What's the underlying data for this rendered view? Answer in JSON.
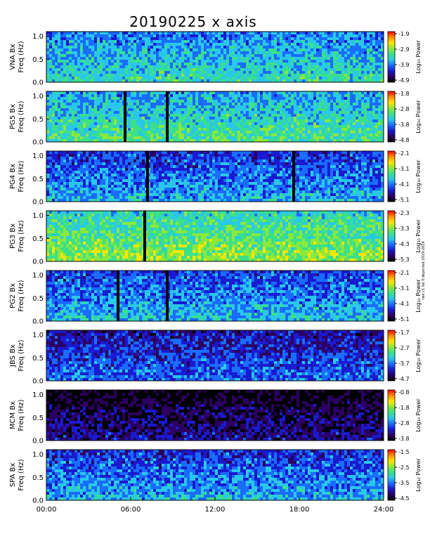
{
  "chart_data": {
    "type": "heatmap",
    "title": "20190225 x axis",
    "colorbar_label": "Log₁₀ Power",
    "x_axis": {
      "tick_labels": [
        "00:00",
        "06:00",
        "12:00",
        "18:00",
        "24:00"
      ],
      "tick_hours": [
        0,
        6,
        12,
        18,
        24
      ],
      "range_hours": [
        0,
        24
      ]
    },
    "y_axis": {
      "tick_labels": [
        "0.0",
        "0.5",
        "1.0"
      ],
      "tick_values": [
        0.0,
        0.5,
        1.0
      ],
      "range": [
        0,
        1.1
      ]
    },
    "side_note": "rwk c1 lse 0 deported 2019-2019",
    "colorscale": [
      "#000000",
      "#2b0060",
      "#1a1ad0",
      "#1a6cff",
      "#2ac8e8",
      "#3ae08a",
      "#8ce83a",
      "#ffe600",
      "#ff8c00",
      "#ff0000"
    ],
    "panels": [
      {
        "station": "VNA Bx",
        "freq_label": "Freq (Hz)",
        "cb_labels": [
          "-1.9",
          "-2.9",
          "-3.9",
          "-4.9"
        ],
        "level": 0.4,
        "gaps": []
      },
      {
        "station": "PG5 Bx",
        "freq_label": "Freq (Hz)",
        "cb_labels": [
          "-1.8",
          "-2.8",
          "-3.8",
          "-4.8"
        ],
        "level": 0.45,
        "gaps": [
          5.6,
          8.6
        ]
      },
      {
        "station": "PG4 Bx",
        "freq_label": "Freq (Hz)",
        "cb_labels": [
          "-2.1",
          "-3.1",
          "-4.1",
          "-5.1"
        ],
        "level": 0.3,
        "gaps": [
          7.2,
          17.6
        ]
      },
      {
        "station": "PG3 Bx",
        "freq_label": "Freq (Hz)",
        "cb_labels": [
          "-2.3",
          "-3.3",
          "-4.3",
          "-5.3"
        ],
        "level": 0.55,
        "gaps": [
          7.0
        ]
      },
      {
        "station": "PG2 Bx",
        "freq_label": "Freq (Hz)",
        "cb_labels": [
          "-2.1",
          "-3.1",
          "-4.1",
          "-5.1"
        ],
        "level": 0.32,
        "gaps": [
          5.1,
          8.6
        ]
      },
      {
        "station": "JBS Bx",
        "freq_label": "Freq (Hz)",
        "cb_labels": [
          "-1.7",
          "-2.7",
          "-3.7",
          "-4.7"
        ],
        "level": 0.22,
        "gaps": []
      },
      {
        "station": "MCM Bx",
        "freq_label": "Freq (Hz)",
        "cb_labels": [
          "-0.8",
          "-1.8",
          "-2.8",
          "-3.8"
        ],
        "level": 0.05,
        "gaps": []
      },
      {
        "station": "SPA Bx",
        "freq_label": "Freq (Hz)",
        "cb_labels": [
          "-1.5",
          "-2.5",
          "-3.5",
          "-4.5"
        ],
        "level": 0.3,
        "gaps": []
      }
    ]
  }
}
